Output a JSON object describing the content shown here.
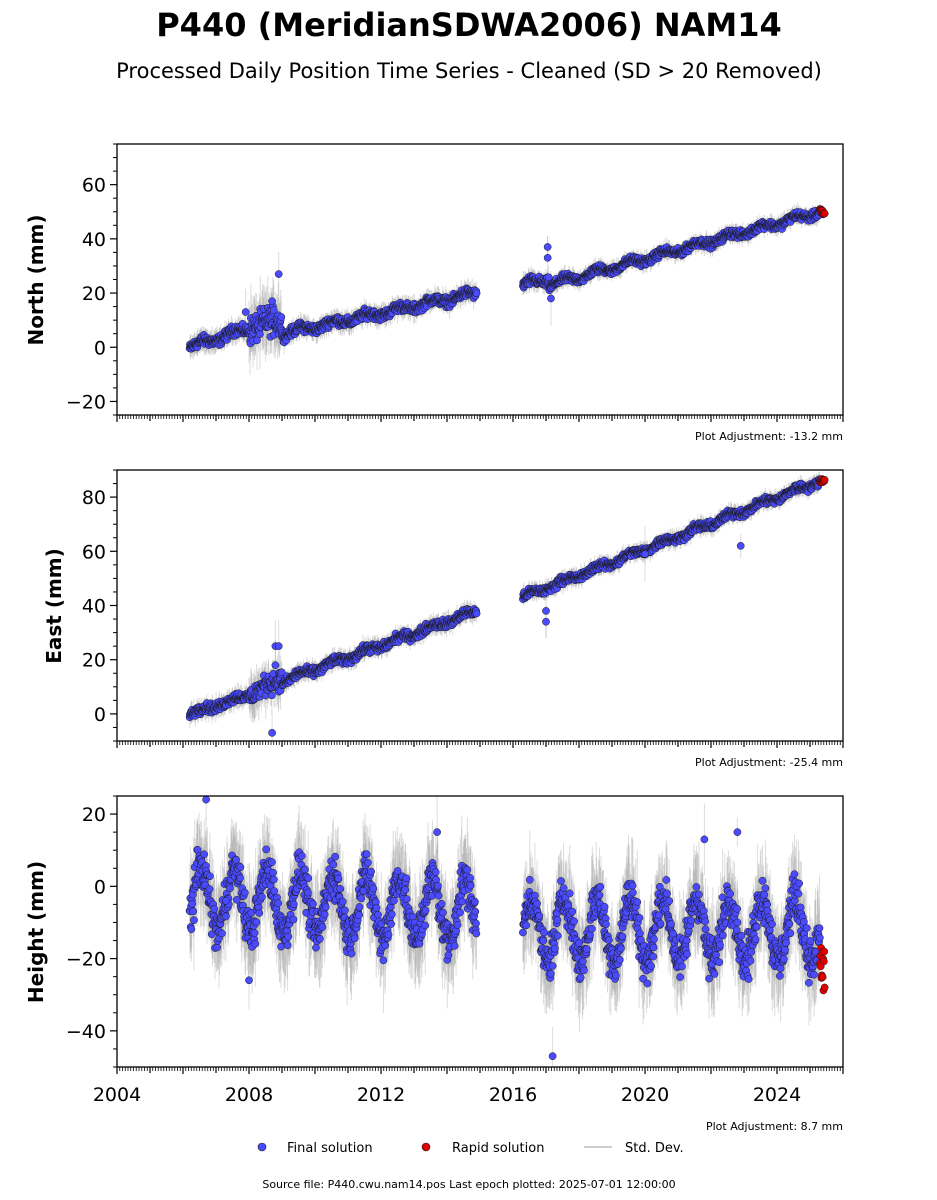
{
  "title": "P440 (MeridianSDWA2006) NAM14",
  "subtitle": "Processed Daily Position Time Series - Cleaned (SD > 20 Removed)",
  "footer": "Source file: P440.cwu.nam14.pos  Last epoch plotted: 2025-07-01 12:00:00",
  "legend": {
    "final": "Final solution",
    "rapid": "Rapid solution",
    "sd": "Std. Dev."
  },
  "colors": {
    "final": "#4a4aff",
    "rapid": "#e00000",
    "sd": "#bdbdbd",
    "marker_edge": "#1a1a1a"
  },
  "chart_data": [
    {
      "type": "scatter",
      "ylabel": "North (mm)",
      "adjustment": "Plot Adjustment: -13.2 mm",
      "xlim": [
        2004,
        2026
      ],
      "ylim": [
        -25,
        75
      ],
      "yticks": [
        -20,
        0,
        20,
        40,
        60
      ],
      "segments": [
        {
          "x0": 2006.2,
          "y0": 0,
          "x1": 2008.0,
          "y1": 7,
          "noise": 1.3,
          "seasonal": 1.0
        },
        {
          "x0": 2008.0,
          "y0": 7,
          "x1": 2009.0,
          "y1": 10,
          "noise": 3.5,
          "seasonal": 1.0
        },
        {
          "x0": 2009.0,
          "y0": 5,
          "x1": 2014.9,
          "y1": 20,
          "noise": 1.2,
          "seasonal": 1.0
        },
        {
          "x0": 2016.3,
          "y0": 23,
          "x1": 2017.1,
          "y1": 25,
          "noise": 1.2,
          "seasonal": 1.0
        },
        {
          "x0": 2017.1,
          "y0": 23,
          "x1": 2025.3,
          "y1": 50,
          "noise": 1.0,
          "seasonal": 1.0
        }
      ],
      "outliers": [
        [
          2008.9,
          27
        ],
        [
          2007.9,
          13
        ],
        [
          2017.05,
          37
        ],
        [
          2017.05,
          33
        ],
        [
          2017.15,
          18
        ],
        [
          2008.7,
          17
        ]
      ],
      "rapid": {
        "x0": 2025.3,
        "x1": 2025.45,
        "y": 50,
        "spread": 1
      }
    },
    {
      "type": "scatter",
      "ylabel": "East (mm)",
      "adjustment": "Plot Adjustment: -25.4 mm",
      "xlim": [
        2004,
        2026
      ],
      "ylim": [
        -10,
        90
      ],
      "yticks": [
        0,
        20,
        40,
        60,
        80
      ],
      "segments": [
        {
          "x0": 2006.2,
          "y0": 0,
          "x1": 2008.0,
          "y1": 7,
          "noise": 1.2,
          "seasonal": 0.8
        },
        {
          "x0": 2008.0,
          "y0": 7,
          "x1": 2009.0,
          "y1": 13,
          "noise": 2.5,
          "seasonal": 0.8
        },
        {
          "x0": 2009.0,
          "y0": 12,
          "x1": 2014.9,
          "y1": 38,
          "noise": 1.1,
          "seasonal": 0.8
        },
        {
          "x0": 2016.3,
          "y0": 43,
          "x1": 2025.3,
          "y1": 86,
          "noise": 1.0,
          "seasonal": 0.8
        }
      ],
      "outliers": [
        [
          2008.8,
          25
        ],
        [
          2008.9,
          25
        ],
        [
          2008.7,
          -7
        ],
        [
          2017.0,
          38
        ],
        [
          2017.0,
          34
        ],
        [
          2020.0,
          59
        ],
        [
          2022.9,
          62
        ],
        [
          2008.8,
          18
        ]
      ],
      "rapid": {
        "x0": 2025.3,
        "x1": 2025.45,
        "y": 86,
        "spread": 1
      }
    },
    {
      "type": "scatter",
      "ylabel": "Height (mm)",
      "adjustment": "Plot Adjustment: 8.7 mm",
      "xlim": [
        2004,
        2026
      ],
      "ylim": [
        -50,
        25
      ],
      "yticks": [
        -40,
        -20,
        0,
        20
      ],
      "xticks": [
        2004,
        2008,
        2012,
        2016,
        2020,
        2024
      ],
      "segments": [
        {
          "x0": 2006.2,
          "y0": -3,
          "x1": 2014.9,
          "y1": -7,
          "noise": 4.0,
          "seasonal": 8.5
        },
        {
          "x0": 2016.3,
          "y0": -12,
          "x1": 2025.3,
          "y1": -12,
          "noise": 4.0,
          "seasonal": 9.0
        }
      ],
      "outliers": [
        [
          2006.7,
          24
        ],
        [
          2007.3,
          -4
        ],
        [
          2008.0,
          -26
        ],
        [
          2017.2,
          -47
        ],
        [
          2013.7,
          15
        ],
        [
          2022.8,
          15
        ],
        [
          2021.8,
          13
        ]
      ],
      "rapid": {
        "x0": 2025.3,
        "x1": 2025.45,
        "y": -23,
        "spread": 6
      }
    }
  ]
}
